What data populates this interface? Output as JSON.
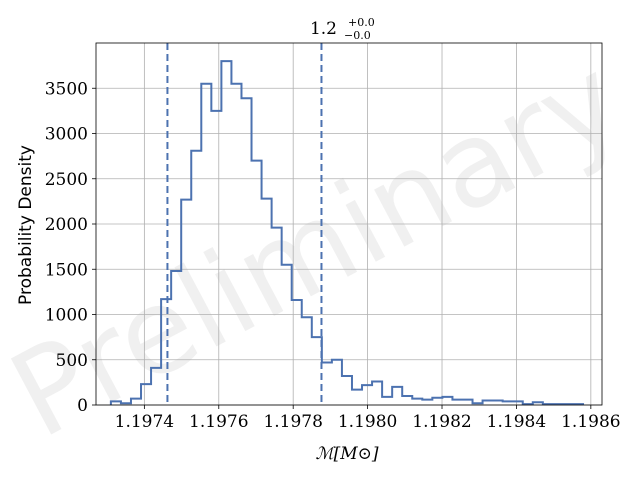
{
  "chart_data": {
    "type": "histogram",
    "ylabel": "Probability Density",
    "xlabel": "ℳ[M⊙]",
    "watermark": "Preliminary",
    "annotation": {
      "value": "1.2",
      "sup": "+0.0",
      "sub": "−0.0"
    },
    "xlim": [
      1.19727,
      1.19863
    ],
    "ylim": [
      0,
      4000
    ],
    "xticks": [
      1.1974,
      1.1976,
      1.1978,
      1.198,
      1.1982,
      1.1984,
      1.1986
    ],
    "xtick_labels": [
      "1.1974",
      "1.1976",
      "1.1978",
      "1.1980",
      "1.1982",
      "1.1984",
      "1.1986"
    ],
    "yticks": [
      0,
      500,
      1000,
      1500,
      2000,
      2500,
      3000,
      3500
    ],
    "ytick_labels": [
      "0",
      "500",
      "1000",
      "1500",
      "2000",
      "2500",
      "3000",
      "3500"
    ],
    "grid": true,
    "color": "#4c72b0",
    "quantile_lines": [
      1.197462,
      1.197876
    ],
    "bin_edges": [
      1.19731,
      1.197337,
      1.197364,
      1.197391,
      1.197418,
      1.197445,
      1.197472,
      1.197499,
      1.197526,
      1.197553,
      1.19758,
      1.197607,
      1.197634,
      1.197661,
      1.197688,
      1.197715,
      1.197742,
      1.197769,
      1.197796,
      1.197823,
      1.19785,
      1.197877,
      1.197904,
      1.197931,
      1.197958,
      1.197985,
      1.198012,
      1.198039,
      1.198066,
      1.198093,
      1.19812,
      1.198147,
      1.198174,
      1.198201,
      1.198228,
      1.198255,
      1.198282,
      1.198309,
      1.198336,
      1.198363,
      1.19839,
      1.198417,
      1.198444,
      1.198471,
      1.198498,
      1.198525,
      1.198552,
      1.198579
    ],
    "values": [
      40,
      20,
      70,
      230,
      410,
      1170,
      1480,
      2270,
      2810,
      3550,
      3250,
      3800,
      3550,
      3390,
      2700,
      2280,
      1960,
      1550,
      1160,
      970,
      750,
      470,
      500,
      320,
      170,
      220,
      260,
      90,
      200,
      100,
      70,
      60,
      80,
      90,
      60,
      60,
      20,
      50,
      50,
      40,
      40,
      10,
      30,
      10,
      10,
      10,
      10
    ]
  }
}
